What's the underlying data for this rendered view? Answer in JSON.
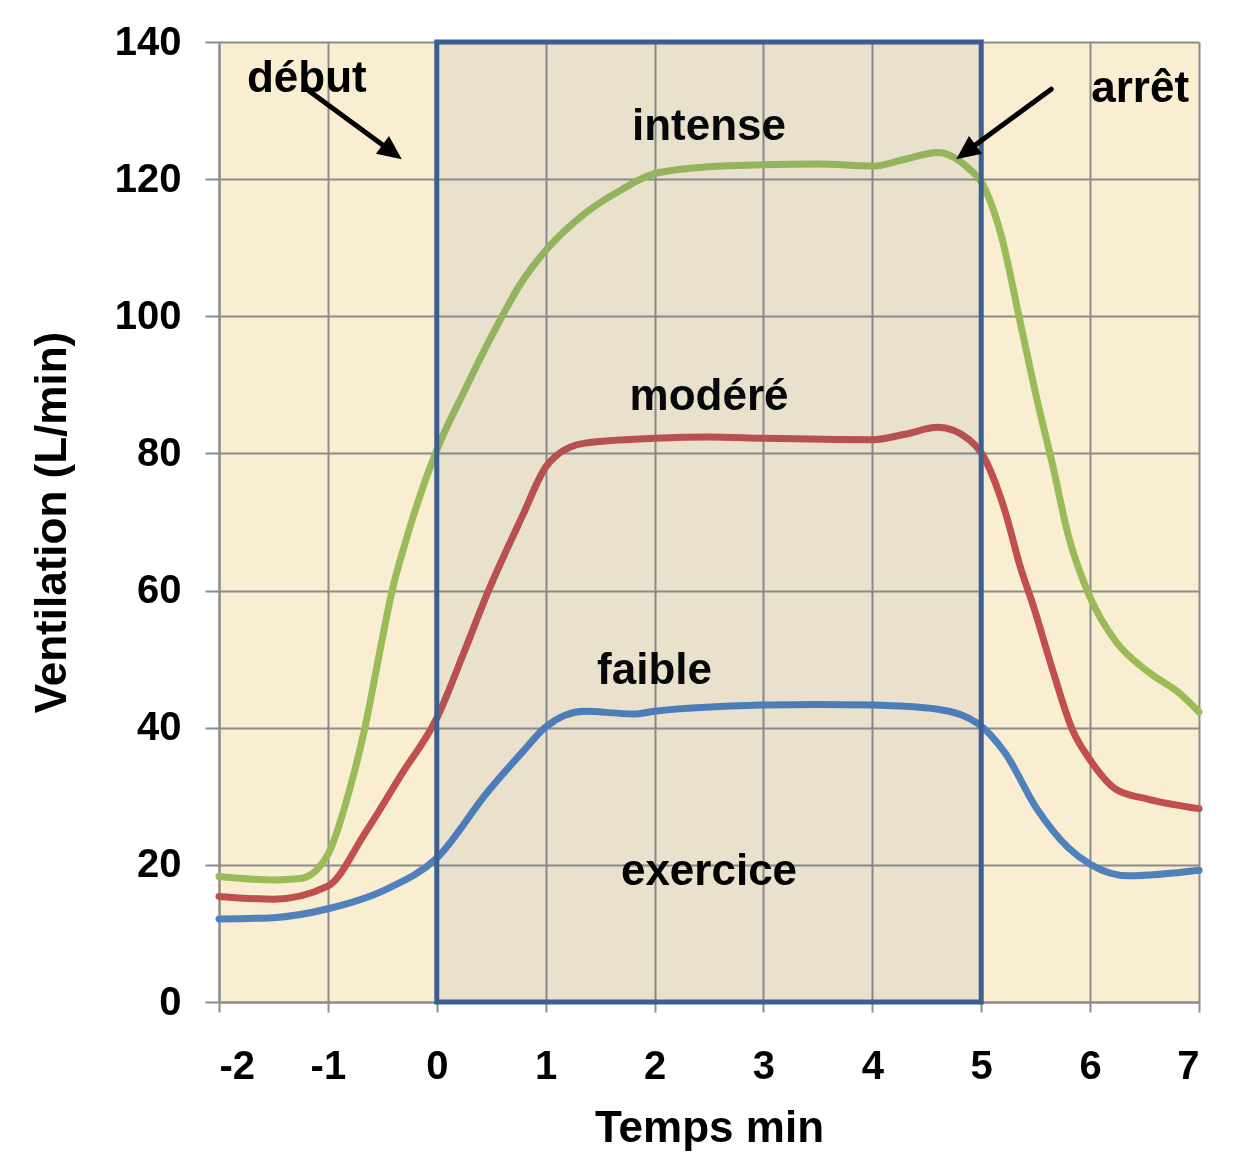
{
  "chart_data": {
    "type": "line",
    "xlabel": "Temps min",
    "ylabel": "Ventilation (L/min)",
    "xlim": [
      -2,
      7
    ],
    "ylim": [
      0,
      140
    ],
    "xticks": [
      -2,
      -1,
      0,
      1,
      2,
      3,
      4,
      5,
      6,
      7
    ],
    "yticks": [
      0,
      20,
      40,
      60,
      80,
      100,
      120,
      140
    ],
    "grid": true,
    "line_style": "solid",
    "series": [
      {
        "name": "intense",
        "color": "#9bbb59",
        "x": [
          -2,
          -1.5,
          -1.25,
          -1,
          -0.8,
          -0.66,
          -0.5,
          -0.41,
          -0.28,
          0,
          0.25,
          0.5,
          0.78,
          1,
          1.36,
          1.7,
          2,
          2.5,
          3,
          3.5,
          4,
          4.3,
          4.6,
          4.89,
          5,
          5.18,
          5.36,
          5.51,
          5.66,
          5.8,
          6,
          6.24,
          6.53,
          6.83,
          7
        ],
        "values": [
          18.3,
          17.8,
          18,
          21.5,
          31,
          40,
          53,
          60,
          67.5,
          80.5,
          89,
          97,
          105,
          109.6,
          115,
          118.5,
          120.8,
          121.8,
          122.1,
          122.2,
          121.9,
          122.9,
          123.9,
          121.5,
          119.6,
          112,
          99,
          88,
          78,
          68,
          59,
          52.5,
          48.2,
          44.9,
          42.3
        ]
      },
      {
        "name": "modéré",
        "color": "#c0504d",
        "x": [
          -2,
          -1.5,
          -1,
          -0.66,
          -0.32,
          0,
          0.25,
          0.47,
          0.79,
          1,
          1.1,
          1.36,
          2,
          2.5,
          3,
          4,
          4.3,
          4.6,
          4.89,
          5,
          5.22,
          5.36,
          5.48,
          5.66,
          5.84,
          6,
          6.24,
          6.53,
          7
        ],
        "values": [
          15.4,
          15,
          16.9,
          24.6,
          33.3,
          41.4,
          51,
          59.8,
          71,
          78,
          79.7,
          81.5,
          82.2,
          82.4,
          82.2,
          82,
          82.8,
          83.8,
          82,
          80.1,
          71.5,
          63.4,
          57.7,
          48.2,
          39.6,
          35.3,
          31,
          29.6,
          28.2
        ]
      },
      {
        "name": "faible",
        "color": "#4f81bd",
        "x": [
          -2,
          -1.5,
          -1,
          -0.47,
          0,
          0.47,
          0.79,
          1,
          1.36,
          1.8,
          2,
          3,
          3.5,
          4,
          4.6,
          4.97,
          5.22,
          5.51,
          5.8,
          6,
          6.36,
          7
        ],
        "values": [
          12.1,
          12.3,
          13.6,
          16.4,
          21,
          30.7,
          36.5,
          40.1,
          42.4,
          42,
          42.4,
          43.3,
          43.4,
          43.3,
          42.7,
          40.6,
          36.3,
          28.2,
          22.5,
          20.1,
          18.4,
          19.2
        ]
      }
    ],
    "bands": [
      {
        "axis": "x",
        "from": 0,
        "to": 5,
        "label": "exercice",
        "color": "#3c5f91"
      }
    ],
    "annotations": [
      {
        "text": "début",
        "x": 0,
        "y": 120
      },
      {
        "text": "arrêt",
        "x": 5,
        "y": 120
      }
    ]
  }
}
